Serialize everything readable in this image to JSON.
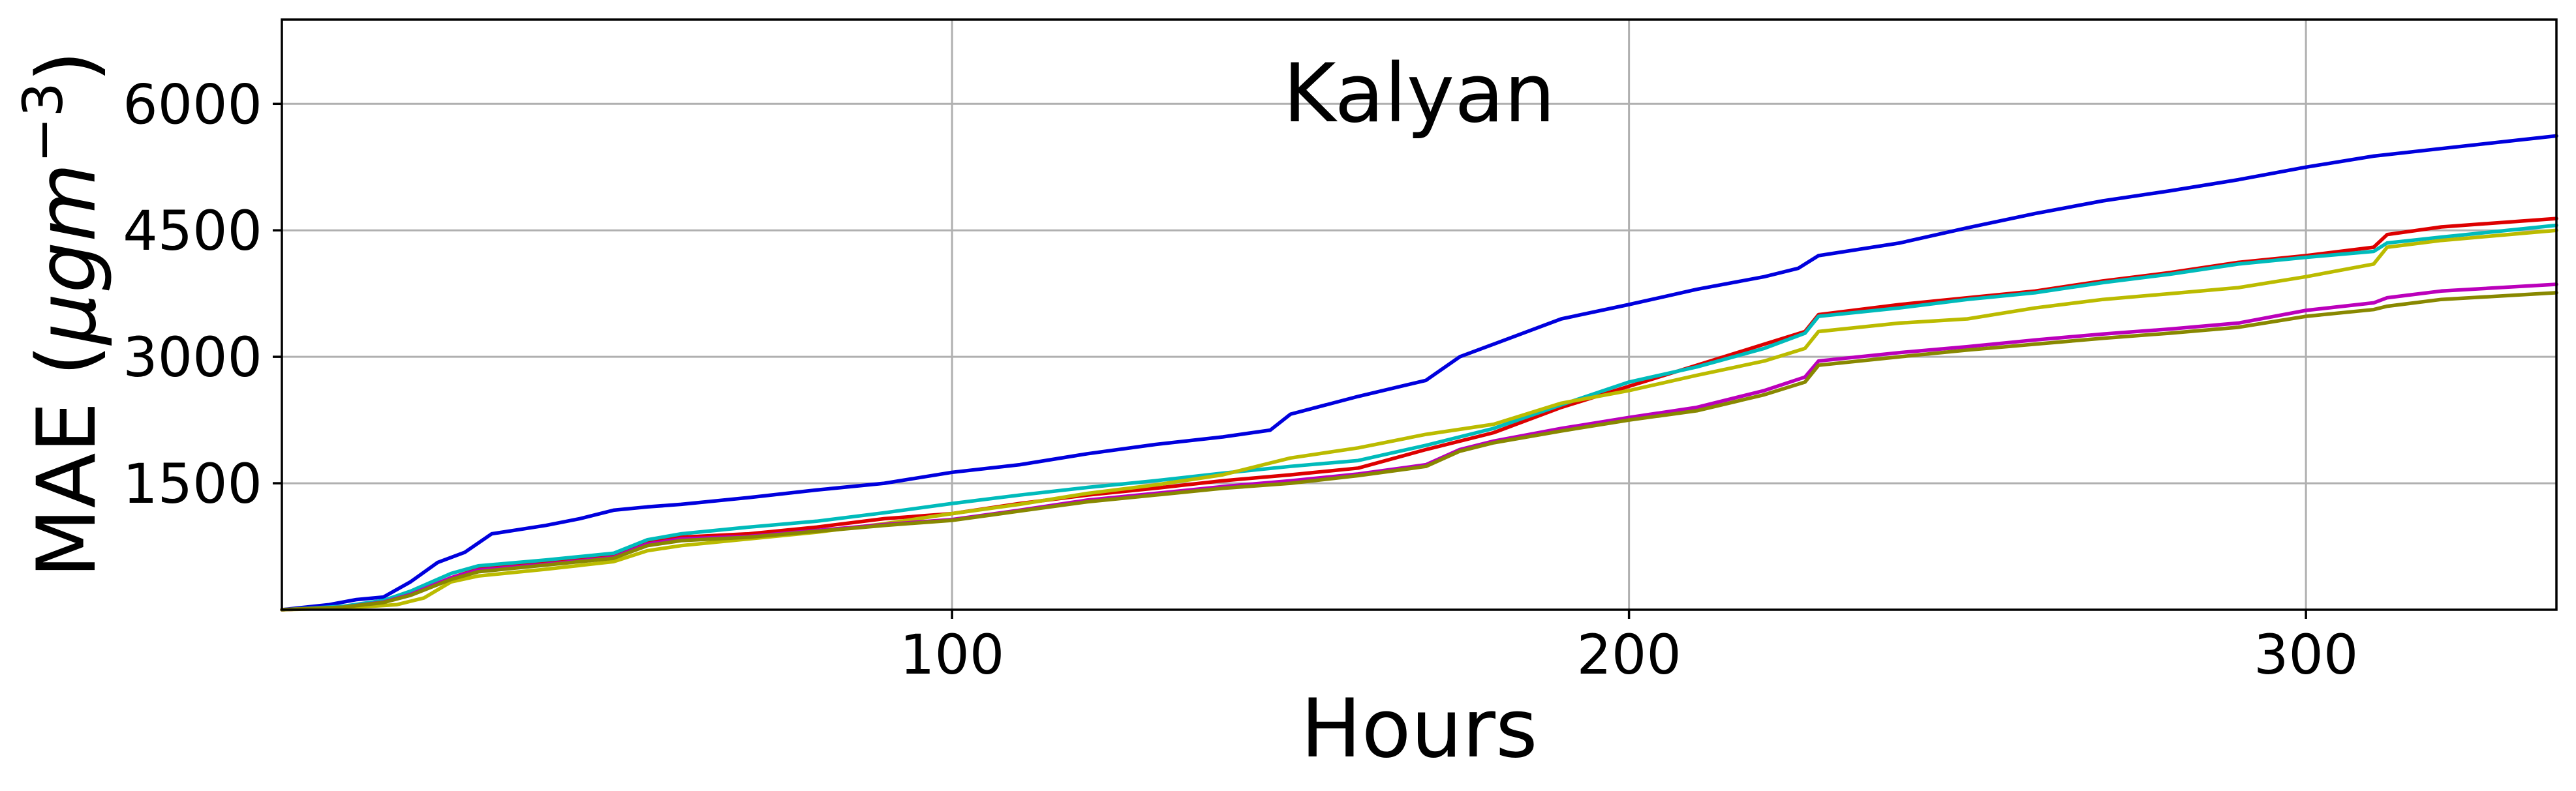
{
  "chart_data": {
    "type": "line",
    "title": "Kalyan",
    "xlabel": "Hours",
    "ylabel_main": "MAE (",
    "ylabel_unit": "μgm",
    "ylabel_exp": "−3",
    "ylabel_close": ")",
    "xlim": [
      1,
      337
    ],
    "ylim": [
      0,
      7000
    ],
    "grid": true,
    "x_ticks": [
      100,
      200,
      300
    ],
    "x_tick_labels": [
      "100",
      "200",
      "300"
    ],
    "y_ticks": [
      1500,
      3000,
      4500,
      6000
    ],
    "y_tick_labels": [
      "1500",
      "3000",
      "4500",
      "6000"
    ],
    "series": [
      {
        "color": "#0000dd",
        "x": [
          1,
          8,
          12,
          16,
          20,
          24,
          28,
          32,
          36,
          40,
          45,
          50,
          55,
          60,
          70,
          80,
          90,
          100,
          110,
          120,
          130,
          140,
          147,
          150,
          160,
          170,
          175,
          180,
          190,
          200,
          210,
          220,
          225,
          228,
          240,
          250,
          260,
          270,
          280,
          290,
          300,
          310,
          320,
          337
        ],
        "y": [
          0,
          60,
          120,
          150,
          330,
          560,
          680,
          900,
          950,
          1000,
          1080,
          1180,
          1220,
          1250,
          1330,
          1420,
          1500,
          1630,
          1720,
          1850,
          1960,
          2050,
          2130,
          2320,
          2530,
          2720,
          3000,
          3150,
          3450,
          3620,
          3800,
          3950,
          4050,
          4200,
          4350,
          4530,
          4700,
          4850,
          4970,
          5100,
          5250,
          5380,
          5470,
          5620
        ]
      },
      {
        "color": "#dd0000",
        "x": [
          1,
          10,
          16,
          20,
          26,
          30,
          40,
          50,
          55,
          60,
          70,
          80,
          90,
          100,
          110,
          120,
          130,
          140,
          150,
          160,
          170,
          180,
          190,
          200,
          210,
          220,
          226,
          228,
          240,
          250,
          260,
          270,
          280,
          290,
          300,
          310,
          312,
          320,
          337
        ],
        "y": [
          0,
          30,
          90,
          180,
          380,
          480,
          560,
          640,
          800,
          860,
          900,
          980,
          1080,
          1140,
          1260,
          1360,
          1440,
          1530,
          1600,
          1680,
          1900,
          2100,
          2400,
          2650,
          2900,
          3150,
          3300,
          3500,
          3620,
          3700,
          3780,
          3900,
          4000,
          4120,
          4200,
          4300,
          4450,
          4540,
          4640
        ]
      },
      {
        "color": "#00bbbb",
        "x": [
          1,
          10,
          16,
          20,
          26,
          30,
          40,
          50,
          55,
          60,
          70,
          80,
          90,
          100,
          110,
          120,
          130,
          140,
          150,
          160,
          170,
          180,
          190,
          200,
          210,
          220,
          226,
          228,
          240,
          250,
          260,
          270,
          280,
          290,
          300,
          310,
          312,
          320,
          337
        ],
        "y": [
          0,
          40,
          110,
          220,
          430,
          520,
          590,
          670,
          830,
          900,
          980,
          1050,
          1150,
          1260,
          1360,
          1450,
          1530,
          1620,
          1700,
          1770,
          1950,
          2150,
          2430,
          2700,
          2880,
          3100,
          3280,
          3480,
          3580,
          3680,
          3760,
          3880,
          3980,
          4100,
          4180,
          4250,
          4350,
          4420,
          4560
        ]
      },
      {
        "color": "#bbbb00",
        "x": [
          1,
          10,
          18,
          22,
          26,
          30,
          40,
          50,
          55,
          60,
          70,
          80,
          90,
          100,
          110,
          120,
          130,
          140,
          150,
          160,
          170,
          180,
          190,
          200,
          210,
          220,
          226,
          228,
          240,
          250,
          260,
          270,
          280,
          290,
          300,
          310,
          312,
          320,
          337
        ],
        "y": [
          0,
          20,
          60,
          140,
          330,
          400,
          480,
          570,
          700,
          760,
          840,
          920,
          1020,
          1140,
          1250,
          1380,
          1480,
          1600,
          1800,
          1920,
          2080,
          2200,
          2450,
          2600,
          2780,
          2950,
          3100,
          3300,
          3400,
          3450,
          3580,
          3680,
          3750,
          3820,
          3950,
          4100,
          4300,
          4380,
          4500
        ]
      },
      {
        "color": "#bb00bb",
        "x": [
          1,
          10,
          16,
          20,
          26,
          30,
          40,
          50,
          55,
          60,
          70,
          80,
          90,
          100,
          110,
          120,
          130,
          140,
          150,
          160,
          170,
          175,
          180,
          190,
          200,
          210,
          220,
          226,
          228,
          240,
          250,
          260,
          270,
          280,
          290,
          300,
          310,
          312,
          320,
          337
        ],
        "y": [
          0,
          30,
          90,
          180,
          380,
          470,
          540,
          620,
          780,
          840,
          870,
          940,
          1010,
          1070,
          1180,
          1300,
          1380,
          1460,
          1530,
          1610,
          1720,
          1900,
          2000,
          2150,
          2280,
          2400,
          2600,
          2760,
          2950,
          3050,
          3120,
          3200,
          3270,
          3330,
          3400,
          3550,
          3640,
          3700,
          3780,
          3860
        ]
      },
      {
        "color": "#888800",
        "x": [
          1,
          10,
          16,
          20,
          26,
          30,
          40,
          50,
          55,
          60,
          70,
          80,
          90,
          100,
          110,
          120,
          130,
          140,
          150,
          160,
          170,
          175,
          180,
          190,
          200,
          210,
          220,
          226,
          228,
          240,
          250,
          260,
          270,
          280,
          290,
          300,
          310,
          312,
          320,
          337
        ],
        "y": [
          0,
          30,
          85,
          170,
          360,
          450,
          530,
          610,
          760,
          820,
          860,
          930,
          1000,
          1060,
          1170,
          1280,
          1360,
          1440,
          1500,
          1590,
          1700,
          1880,
          1980,
          2120,
          2250,
          2360,
          2550,
          2700,
          2900,
          3000,
          3080,
          3150,
          3220,
          3280,
          3350,
          3480,
          3560,
          3600,
          3680,
          3760
        ]
      }
    ]
  }
}
